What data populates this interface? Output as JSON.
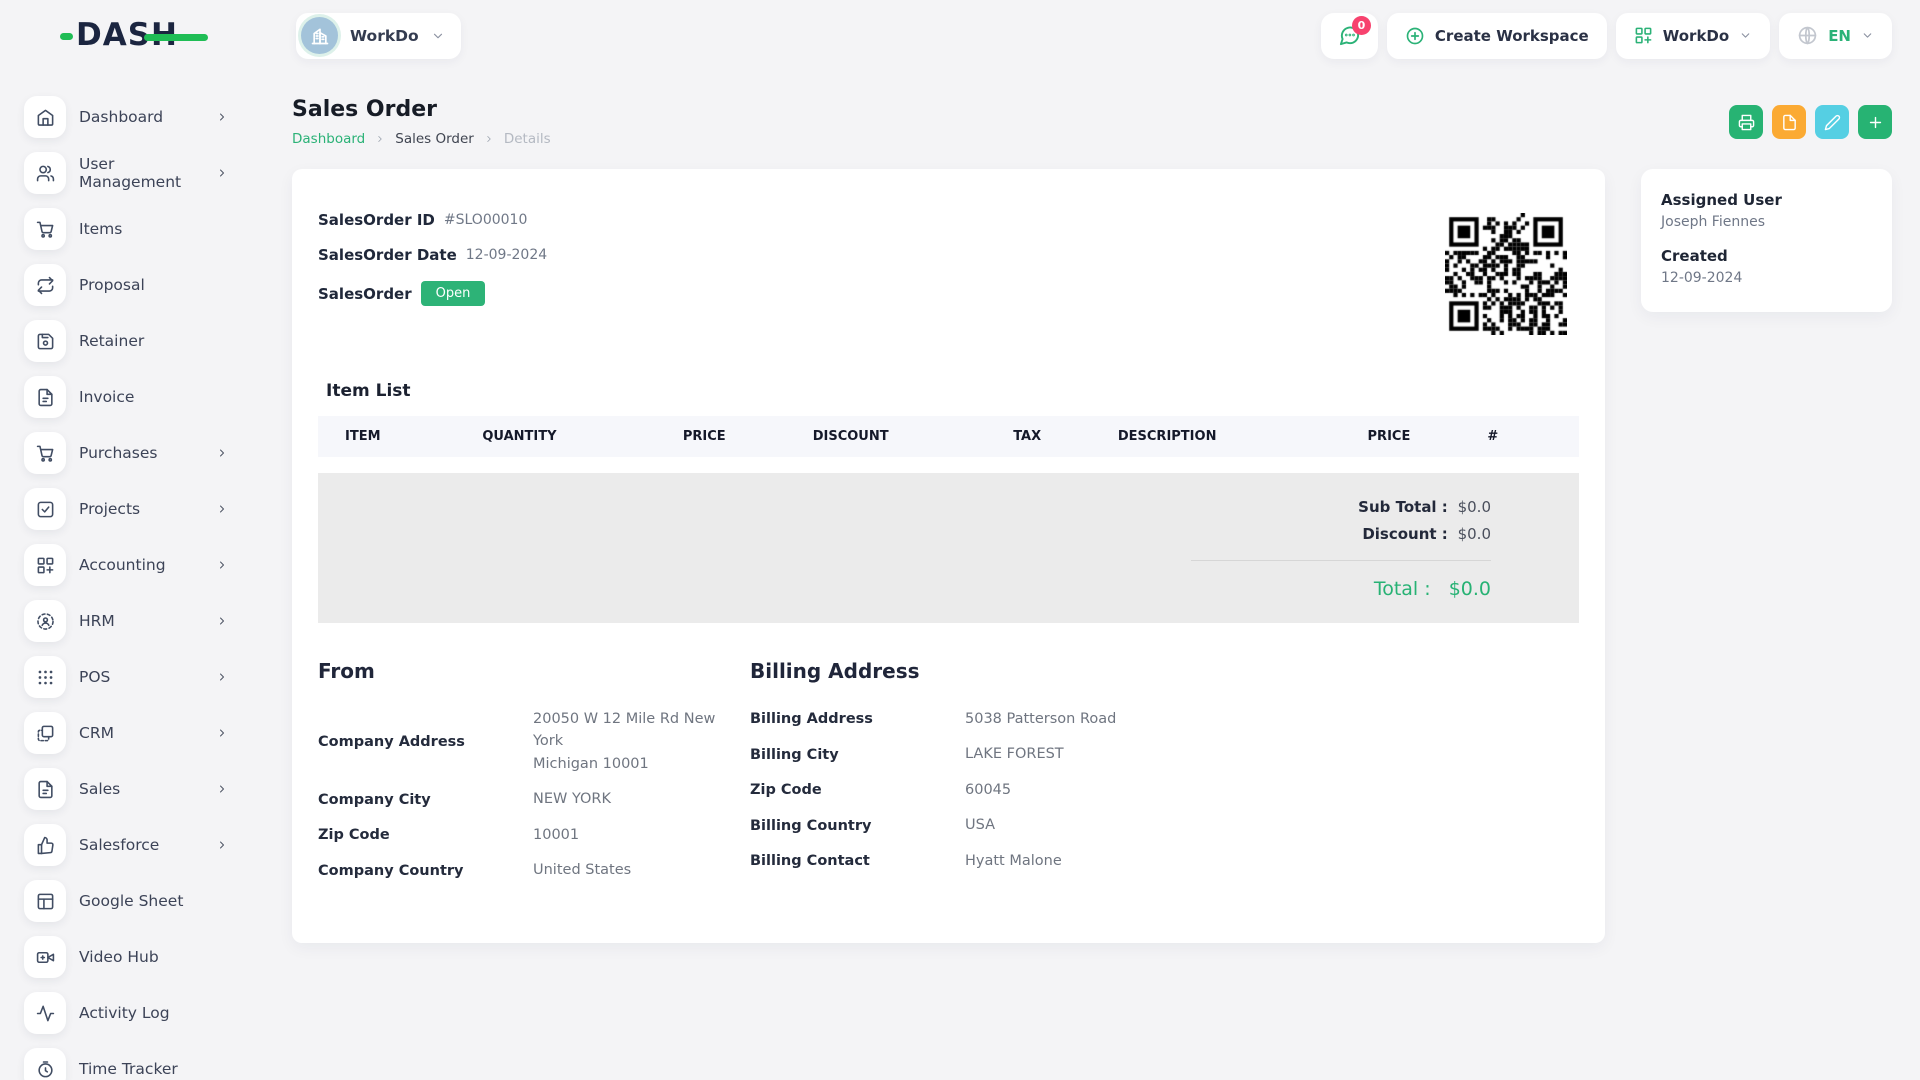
{
  "brand": {
    "name": "DASH"
  },
  "topbar": {
    "workspace_selector": {
      "label": "WorkDo",
      "icon": "building-icon"
    },
    "messages": {
      "icon": "chat-icon",
      "badge": "0"
    },
    "create_workspace_label": "Create Workspace",
    "workdo_menu_label": "WorkDo",
    "language": "EN"
  },
  "sidebar": {
    "items": [
      {
        "label": "Dashboard",
        "icon": "home-icon",
        "has_children": true
      },
      {
        "label": "User Management",
        "icon": "users-icon",
        "has_children": true
      },
      {
        "label": "Items",
        "icon": "cart-icon",
        "has_children": false
      },
      {
        "label": "Proposal",
        "icon": "repeat-icon",
        "has_children": false
      },
      {
        "label": "Retainer",
        "icon": "save-icon",
        "has_children": false
      },
      {
        "label": "Invoice",
        "icon": "file-text-icon",
        "has_children": false
      },
      {
        "label": "Purchases",
        "icon": "cart-icon",
        "has_children": true
      },
      {
        "label": "Projects",
        "icon": "check-square-icon",
        "has_children": true
      },
      {
        "label": "Accounting",
        "icon": "grid-plus-icon",
        "has_children": true
      },
      {
        "label": "HRM",
        "icon": "person-scan-icon",
        "has_children": true
      },
      {
        "label": "POS",
        "icon": "dots-grid-icon",
        "has_children": true
      },
      {
        "label": "CRM",
        "icon": "layers-icon",
        "has_children": true
      },
      {
        "label": "Sales",
        "icon": "file-text-icon",
        "has_children": true
      },
      {
        "label": "Salesforce",
        "icon": "thumbs-up-icon",
        "has_children": true
      },
      {
        "label": "Google Sheet",
        "icon": "table-icon",
        "has_children": false
      },
      {
        "label": "Video Hub",
        "icon": "video-icon",
        "has_children": false
      },
      {
        "label": "Activity Log",
        "icon": "activity-icon",
        "has_children": false
      },
      {
        "label": "Time Tracker",
        "icon": "timer-icon",
        "has_children": false
      }
    ]
  },
  "page": {
    "title": "Sales Order",
    "breadcrumb": [
      "Dashboard",
      "Sales Order",
      "Details"
    ],
    "header_actions": [
      {
        "icon": "printer-icon",
        "color": "#27b373"
      },
      {
        "icon": "file-icon",
        "color": "#fbaa33"
      },
      {
        "icon": "edit-icon",
        "color": "#55cfe3"
      },
      {
        "icon": "plus-icon",
        "color": "#27b373"
      }
    ]
  },
  "order": {
    "id_label": "SalesOrder ID",
    "id": "#SLO00010",
    "date_label": "SalesOrder Date",
    "date": "12-09-2024",
    "status_label": "SalesOrder",
    "status": "Open",
    "status_color": "#2db377"
  },
  "item_list": {
    "title": "Item List",
    "columns": [
      "ITEM",
      "QUANTITY",
      "PRICE",
      "DISCOUNT",
      "TAX",
      "DESCRIPTION",
      "PRICE",
      "#"
    ],
    "rows": [],
    "sub_total_label": "Sub Total :",
    "sub_total": "$0.0",
    "discount_label": "Discount :",
    "discount": "$0.0",
    "total_label": "Total :",
    "total": "$0.0",
    "total_color": "#27b274"
  },
  "from": {
    "title": "From",
    "rows": [
      {
        "label": "Company Address",
        "value": "20050 W 12 Mile Rd New York\nMichigan 10001"
      },
      {
        "label": "Company City",
        "value": "NEW YORK"
      },
      {
        "label": "Zip Code",
        "value": "10001"
      },
      {
        "label": "Company Country",
        "value": "United States"
      }
    ]
  },
  "billing": {
    "title": "Billing Address",
    "rows": [
      {
        "label": "Billing Address",
        "value": "5038 Patterson Road"
      },
      {
        "label": "Billing City",
        "value": "LAKE FOREST"
      },
      {
        "label": "Zip Code",
        "value": "60045"
      },
      {
        "label": "Billing Country",
        "value": "USA"
      },
      {
        "label": "Billing Contact",
        "value": "Hyatt Malone"
      }
    ]
  },
  "side_panel": {
    "assigned_user_label": "Assigned User",
    "assigned_user": "Joseph Fiennes",
    "created_label": "Created",
    "created": "12-09-2024"
  },
  "colors": {
    "primary_green": "#2bb277",
    "logo_green": "#1fbd55",
    "badge_pink": "#f7426e",
    "navy_text": "#1b2540",
    "page_background": "#f4f4f6"
  }
}
